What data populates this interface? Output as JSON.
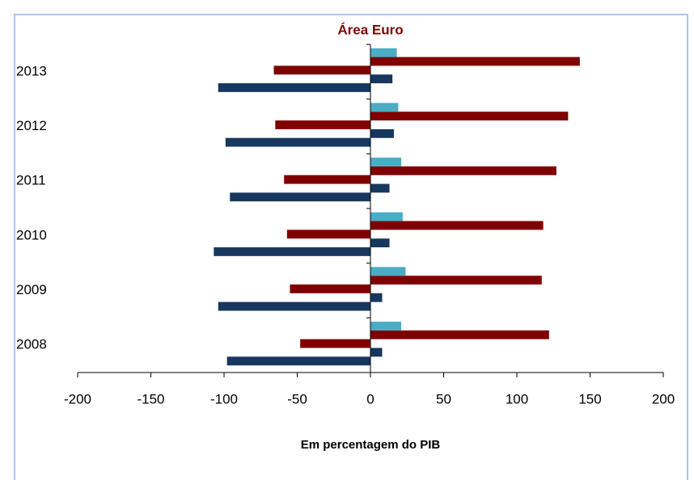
{
  "chart_data": {
    "type": "hbar",
    "title": "Área Euro",
    "x_label": "Em percentagem do PIB",
    "categories": [
      "2008",
      "2009",
      "2010",
      "2011",
      "2012",
      "2013"
    ],
    "series": [
      {
        "color": "#17375e",
        "values": [
          -98,
          -104,
          -107,
          -96,
          -99,
          -104
        ]
      },
      {
        "color": "#17375e",
        "values": [
          8,
          8,
          13,
          13,
          16,
          15
        ]
      },
      {
        "color": "#7f0000",
        "values": [
          -48,
          -55,
          -57,
          -59,
          -65,
          -66
        ]
      },
      {
        "color": "#7f0000",
        "values": [
          122,
          117,
          118,
          127,
          135,
          143
        ]
      },
      {
        "color": "#4bacc6",
        "values": [
          21,
          24,
          22,
          21,
          19,
          18
        ]
      }
    ],
    "xlim": [
      -200,
      200
    ],
    "xticks": [
      -200,
      -150,
      -100,
      -50,
      0,
      50,
      100,
      150,
      200
    ]
  }
}
